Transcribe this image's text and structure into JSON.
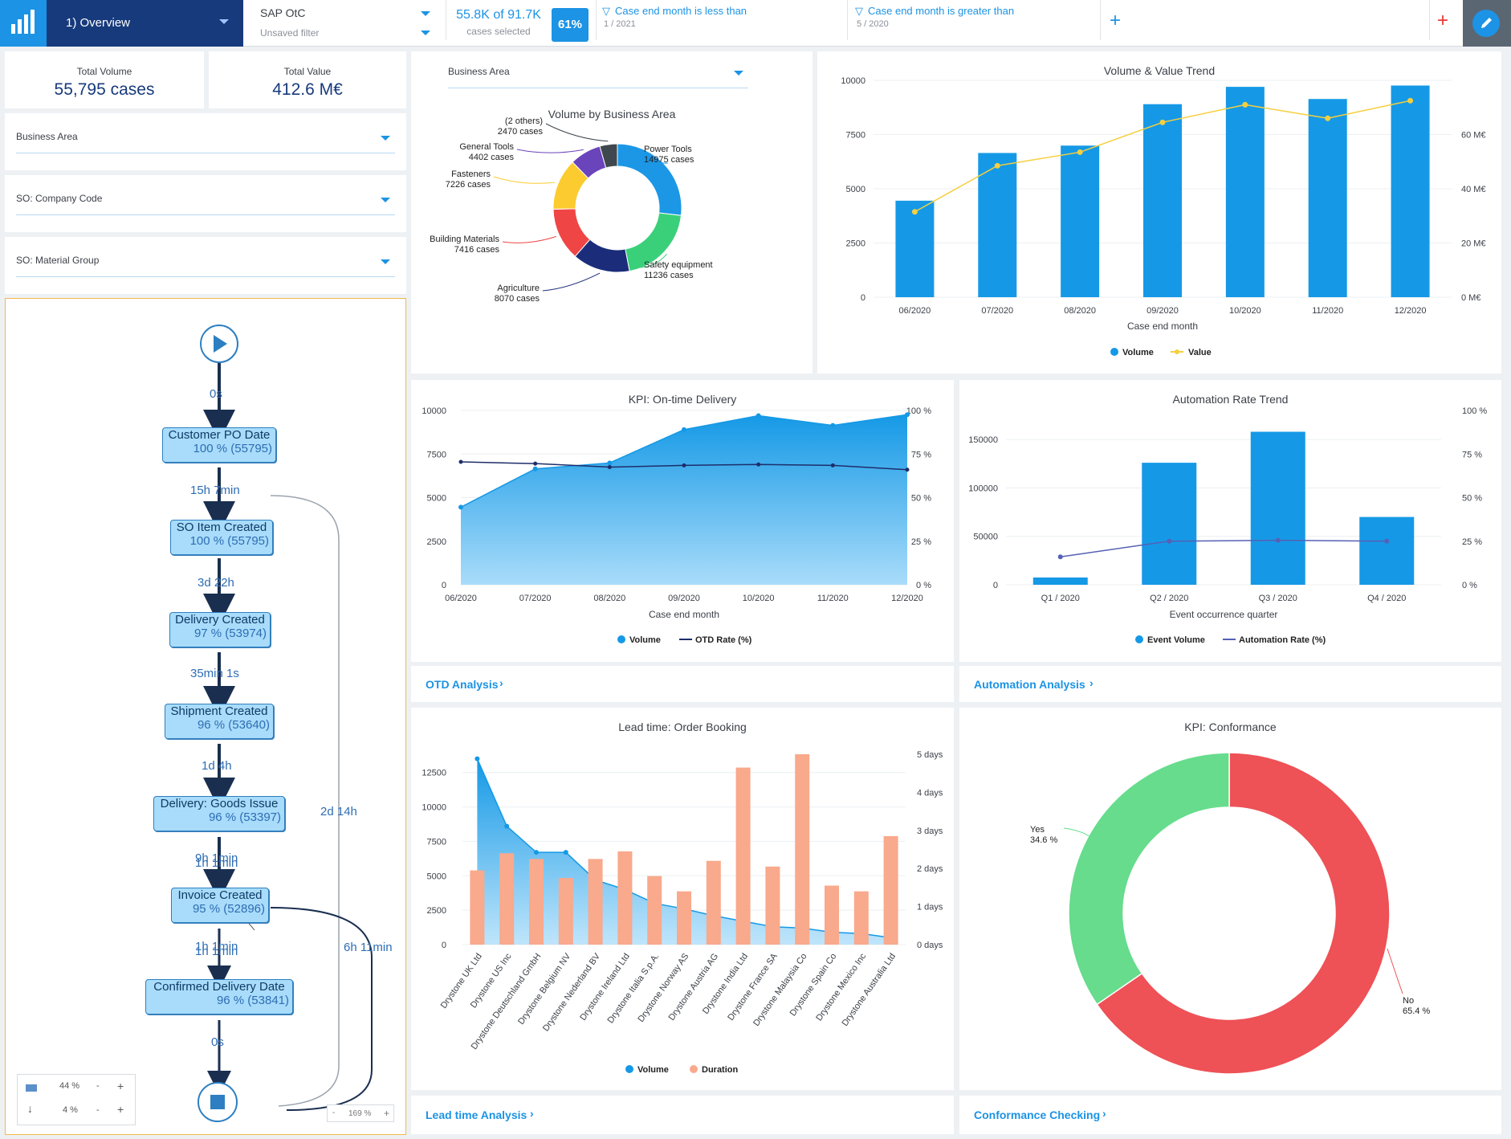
{
  "colors": {
    "accent": "#1c93e4",
    "nav_dark": "#173a7c",
    "volume_blue": "#1599e6",
    "value_yellow": "#f6cf3e",
    "otd_line": "#1d2e6b",
    "duration_orange": "#f9a98c",
    "conformance_red": "#ee5156",
    "conformance_green": "#66dc8c"
  },
  "header": {
    "logo_icon": "bar-chart-logo-icon",
    "view_name": "1) Overview",
    "process_name": "SAP OtC",
    "filter_name": "Unsaved filter",
    "cases_selected": "55.8K of 91.7K",
    "cases_selected_label": "cases selected",
    "cases_pct": "61%",
    "filters": [
      {
        "title": "Case end month is less than",
        "value": "1 / 2021"
      },
      {
        "title": "Case end month is greater than",
        "value": "5 / 2020"
      }
    ],
    "add_filter": "+",
    "add_red": "+",
    "edit_icon": "pencil-icon"
  },
  "kpis": {
    "total_volume_label": "Total Volume",
    "total_volume": "55,795 cases",
    "total_value_label": "Total Value",
    "total_value": "412.6 M€"
  },
  "left_filters": [
    "Business Area",
    "SO: Company Code",
    "SO: Material Group"
  ],
  "process_map": {
    "nodes": [
      {
        "name": "Customer PO Date",
        "pct": "100 % (55795)"
      },
      {
        "name": "SO Item Created",
        "pct": "100 % (55795)"
      },
      {
        "name": "Delivery Created",
        "pct": "97 % (53974)"
      },
      {
        "name": "Shipment Created",
        "pct": "96 % (53640)"
      },
      {
        "name": "Delivery: Goods Issue",
        "pct": "96 % (53397)"
      },
      {
        "name": "Invoice Created",
        "pct": "95 % (52896)"
      },
      {
        "name": "Confirmed Delivery Date",
        "pct": "96 % (53841)"
      }
    ],
    "edges": [
      "0s",
      "15h 7min",
      "3d 22h",
      "35min 1s",
      "1d 4h",
      "9h 1min",
      "1h 1min",
      "1h 1min",
      "1h 1min",
      "0s"
    ],
    "loop_labels": [
      "2d 14h",
      "6h 11min"
    ],
    "controls": {
      "activities": "44 %",
      "connections": "4 %",
      "minus": "-",
      "plus": "+",
      "zoom": "169 %"
    }
  },
  "donut": {
    "dropdown": "Business Area",
    "title": "Volume by Business Area"
  },
  "trend": {
    "title": "Volume & Value Trend"
  },
  "otd": {
    "title": "KPI: On-time Delivery"
  },
  "automation": {
    "title": "Automation Rate Trend"
  },
  "leadtime": {
    "title": "Lead time: Order Booking"
  },
  "conformance": {
    "title": "KPI: Conformance"
  },
  "links": [
    "OTD Analysis",
    "Automation Analysis",
    "Lead time Analysis",
    "Conformance Checking"
  ],
  "chart_data": [
    {
      "type": "pie",
      "title": "Volume by Business Area",
      "categories": [
        "Power Tools",
        "Safety equipment",
        "Agriculture",
        "Building Materials",
        "Fasteners",
        "General Tools",
        "(2 others)"
      ],
      "values": [
        14975,
        11236,
        8070,
        7416,
        7226,
        4402,
        2470
      ],
      "labels": [
        "14975 cases",
        "11236 cases",
        "8070 cases",
        "7416 cases",
        "7226 cases",
        "4402 cases",
        "2470 cases"
      ],
      "colors": [
        "#1b97e6",
        "#3ad07a",
        "#1b2c7a",
        "#f04545",
        "#fbcb2f",
        "#6a44ba",
        "#40484f"
      ]
    },
    {
      "type": "bar",
      "title": "Volume & Value Trend",
      "categories": [
        "06/2020",
        "07/2020",
        "08/2020",
        "09/2020",
        "10/2020",
        "11/2020",
        "12/2020"
      ],
      "xlabel": "Case end month",
      "series": [
        {
          "name": "Volume",
          "values": [
            4450,
            6650,
            6990,
            8900,
            9700,
            9140,
            9760
          ]
        },
        {
          "name": "Value",
          "values": [
            31.5,
            48.5,
            53.5,
            64.5,
            71,
            66,
            72.5
          ]
        }
      ],
      "ylim": [
        0,
        10000
      ],
      "yticks": [
        "0",
        "2500",
        "5000",
        "7500",
        "10000"
      ],
      "y2ticks": [
        "0 M€",
        "20 M€",
        "40 M€",
        "60 M€"
      ],
      "legend": [
        "Volume",
        "Value"
      ]
    },
    {
      "type": "area",
      "title": "KPI: On-time Delivery",
      "categories": [
        "06/2020",
        "07/2020",
        "08/2020",
        "09/2020",
        "10/2020",
        "11/2020",
        "12/2020"
      ],
      "xlabel": "Case end month",
      "series": [
        {
          "name": "Volume",
          "values": [
            4450,
            6650,
            6990,
            8900,
            9700,
            9140,
            9760
          ]
        },
        {
          "name": "OTD Rate (%)",
          "values": [
            70.5,
            69.5,
            67.5,
            68.5,
            69,
            68.5,
            66
          ]
        }
      ],
      "ylim": [
        0,
        10000
      ],
      "yticks": [
        "0",
        "2500",
        "5000",
        "7500",
        "10000"
      ],
      "y2ticks": [
        "0 %",
        "25 %",
        "50 %",
        "75 %",
        "100 %"
      ],
      "legend": [
        "Volume",
        "OTD Rate (%)"
      ]
    },
    {
      "type": "bar",
      "title": "Automation Rate Trend",
      "categories": [
        "Q1 / 2020",
        "Q2 / 2020",
        "Q3 / 2020",
        "Q4 / 2020"
      ],
      "xlabel": "Event occurrence quarter",
      "series": [
        {
          "name": "Event Volume",
          "values": [
            7500,
            126000,
            158000,
            70000
          ]
        },
        {
          "name": "Automation Rate (%)",
          "values": [
            16,
            25,
            25.5,
            25
          ]
        }
      ],
      "yticks": [
        "0",
        "50000",
        "100000",
        "150000"
      ],
      "y2ticks": [
        "0 %",
        "25 %",
        "50 %",
        "75 %",
        "100 %"
      ],
      "legend": [
        "Event Volume",
        "Automation Rate (%)"
      ]
    },
    {
      "type": "bar",
      "title": "Lead time: Order Booking",
      "categories": [
        "Drystone UK Ltd",
        "Drystone US Inc",
        "Drystone Deutschland GmbH",
        "Drystone Belgium NV",
        "Drystone Nederland BV",
        "Drystone Ireland Ltd",
        "Drystone Italia S.p.A.",
        "Drystone Norway AS",
        "Drystone Austria AG",
        "Drystone India Ltd",
        "Drystone France SA",
        "Drystone Malaysia Co",
        "Drystone Spain Co",
        "Drystone Mexico Inc",
        "Drystone Australia Ltd"
      ],
      "series": [
        {
          "name": "Volume",
          "values": [
            13500,
            8600,
            6700,
            6700,
            4700,
            4000,
            3000,
            2600,
            2100,
            1700,
            1300,
            1200,
            900,
            800,
            500
          ]
        },
        {
          "name": "Duration",
          "values": [
            1.95,
            2.4,
            2.25,
            1.75,
            2.25,
            2.45,
            1.8,
            1.4,
            2.2,
            4.65,
            2.05,
            5.0,
            1.55,
            1.4,
            2.85
          ]
        }
      ],
      "yticks": [
        "0",
        "2500",
        "5000",
        "7500",
        "10000",
        "12500"
      ],
      "y2ticks": [
        "0 days",
        "1 days",
        "2 days",
        "3 days",
        "4 days",
        "5 days"
      ],
      "legend": [
        "Volume",
        "Duration"
      ]
    },
    {
      "type": "pie",
      "title": "KPI: Conformance",
      "categories": [
        "No",
        "Yes"
      ],
      "values": [
        65.4,
        34.6
      ],
      "labels": [
        "65.4 %",
        "34.6 %"
      ]
    }
  ]
}
